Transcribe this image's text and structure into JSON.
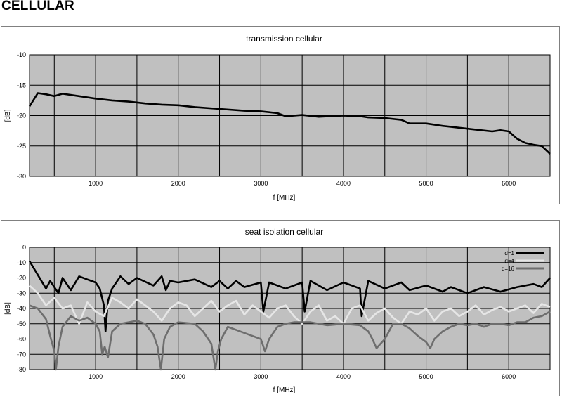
{
  "page": {
    "heading": "CELLULAR"
  },
  "chart_data": [
    {
      "type": "line",
      "title": "transmission cellular",
      "xlabel": "f [MHz]",
      "ylabel": "[dB]",
      "xlim": [
        200,
        6500
      ],
      "ylim": [
        -30,
        -10
      ],
      "x_ticks": [
        1000,
        2000,
        3000,
        4000,
        5000,
        6000
      ],
      "y_ticks": [
        -10,
        -15,
        -20,
        -25,
        -30
      ],
      "grid": true,
      "plot_background": "#c0c0c0",
      "series": [
        {
          "color": "#000000",
          "x": [
            200,
            300,
            400,
            500,
            600,
            800,
            1000,
            1200,
            1400,
            1600,
            1800,
            2000,
            2200,
            2500,
            2800,
            3000,
            3200,
            3300,
            3500,
            3700,
            4000,
            4200,
            4300,
            4500,
            4700,
            4800,
            5000,
            5200,
            5400,
            5600,
            5800,
            5900,
            6000,
            6100,
            6200,
            6300,
            6400,
            6500
          ],
          "values": [
            -18.5,
            -16.3,
            -16.5,
            -16.8,
            -16.4,
            -16.8,
            -17.2,
            -17.5,
            -17.7,
            -18.0,
            -18.2,
            -18.3,
            -18.6,
            -18.9,
            -19.2,
            -19.3,
            -19.6,
            -20.1,
            -19.9,
            -20.2,
            -20.0,
            -20.1,
            -20.3,
            -20.4,
            -20.7,
            -21.3,
            -21.3,
            -21.7,
            -22.0,
            -22.3,
            -22.6,
            -22.4,
            -22.6,
            -23.8,
            -24.5,
            -24.8,
            -25.0,
            -26.3
          ]
        }
      ]
    },
    {
      "type": "line",
      "title": "seat isolation cellular",
      "xlabel": "f [MHz]",
      "ylabel": "[dB]",
      "xlim": [
        200,
        6500
      ],
      "ylim": [
        -80,
        0
      ],
      "x_ticks": [
        1000,
        2000,
        3000,
        4000,
        5000,
        6000
      ],
      "y_ticks": [
        0,
        -10,
        -20,
        -30,
        -40,
        -50,
        -60,
        -70,
        -80
      ],
      "grid": true,
      "legend_position": "top-right",
      "plot_background": "#c0c0c0",
      "series": [
        {
          "name": "d=1",
          "color": "#000000",
          "x": [
            200,
            300,
            400,
            450,
            550,
            600,
            700,
            800,
            900,
            1000,
            1050,
            1100,
            1120,
            1150,
            1200,
            1300,
            1400,
            1500,
            1700,
            1800,
            1850,
            1900,
            2000,
            2200,
            2400,
            2500,
            2600,
            2700,
            2800,
            3000,
            3030,
            3100,
            3300,
            3500,
            3530,
            3600,
            3800,
            4000,
            4200,
            4220,
            4300,
            4500,
            4700,
            4800,
            5000,
            5200,
            5300,
            5500,
            5700,
            5900,
            6100,
            6300,
            6400,
            6500
          ],
          "values": [
            -9,
            -18,
            -27,
            -22,
            -30,
            -20,
            -28,
            -19,
            -21,
            -23,
            -27,
            -38,
            -55,
            -35,
            -27,
            -19,
            -24,
            -20,
            -25,
            -19,
            -28,
            -22,
            -23,
            -21,
            -26,
            -22,
            -27,
            -22,
            -26,
            -23,
            -42,
            -23,
            -27,
            -23,
            -42,
            -22,
            -28,
            -23,
            -27,
            -45,
            -22,
            -27,
            -23,
            -28,
            -25,
            -29,
            -26,
            -30,
            -26,
            -29,
            -26,
            -24,
            -26,
            -20
          ]
        },
        {
          "name": "d=4",
          "color": "#e6e6e6",
          "x": [
            200,
            300,
            400,
            500,
            600,
            700,
            800,
            900,
            1000,
            1100,
            1200,
            1300,
            1400,
            1500,
            1600,
            1700,
            1800,
            1900,
            2000,
            2100,
            2200,
            2300,
            2400,
            2500,
            2600,
            2700,
            2800,
            2900,
            3000,
            3100,
            3200,
            3300,
            3400,
            3500,
            3600,
            3700,
            3800,
            3900,
            4000,
            4100,
            4200,
            4300,
            4400,
            4500,
            4600,
            4700,
            4800,
            4900,
            5000,
            5100,
            5200,
            5300,
            5400,
            5500,
            5600,
            5700,
            5800,
            5900,
            6000,
            6100,
            6200,
            6300,
            6400,
            6500
          ],
          "values": [
            -25,
            -30,
            -38,
            -33,
            -40,
            -38,
            -50,
            -36,
            -42,
            -45,
            -33,
            -36,
            -40,
            -34,
            -38,
            -42,
            -48,
            -40,
            -36,
            -38,
            -45,
            -40,
            -35,
            -42,
            -38,
            -35,
            -44,
            -38,
            -42,
            -46,
            -40,
            -38,
            -45,
            -50,
            -42,
            -38,
            -48,
            -45,
            -50,
            -40,
            -38,
            -48,
            -43,
            -40,
            -46,
            -50,
            -42,
            -44,
            -40,
            -48,
            -42,
            -40,
            -45,
            -42,
            -38,
            -44,
            -41,
            -39,
            -42,
            -40,
            -38,
            -43,
            -37,
            -39
          ]
        },
        {
          "name": "d=16",
          "color": "#6e6e6e",
          "x": [
            200,
            300,
            400,
            450,
            500,
            520,
            550,
            600,
            700,
            800,
            900,
            1000,
            1050,
            1080,
            1110,
            1150,
            1200,
            1300,
            1400,
            1500,
            1600,
            1700,
            1750,
            1790,
            1830,
            1900,
            2000,
            2200,
            2300,
            2400,
            2450,
            2480,
            2520,
            2600,
            2800,
            3000,
            3050,
            3100,
            3200,
            3300,
            3400,
            3600,
            3800,
            4000,
            4200,
            4300,
            4350,
            4400,
            4500,
            4600,
            4700,
            4800,
            4900,
            5000,
            5050,
            5100,
            5200,
            5300,
            5400,
            5500,
            5600,
            5700,
            5800,
            5900,
            6000,
            6100,
            6200,
            6300,
            6400,
            6500
          ],
          "values": [
            -38,
            -40,
            -47,
            -58,
            -68,
            -80,
            -65,
            -52,
            -45,
            -48,
            -46,
            -50,
            -55,
            -70,
            -65,
            -72,
            -55,
            -50,
            -49,
            -48,
            -50,
            -57,
            -65,
            -80,
            -60,
            -52,
            -49,
            -50,
            -55,
            -63,
            -80,
            -68,
            -60,
            -52,
            -56,
            -60,
            -68,
            -60,
            -52,
            -50,
            -49,
            -49,
            -51,
            -50,
            -51,
            -55,
            -60,
            -66,
            -60,
            -50,
            -50,
            -53,
            -58,
            -62,
            -66,
            -60,
            -55,
            -52,
            -50,
            -51,
            -50,
            -52,
            -50,
            -50,
            -51,
            -49,
            -49,
            -46,
            -45,
            -42
          ]
        }
      ]
    }
  ]
}
